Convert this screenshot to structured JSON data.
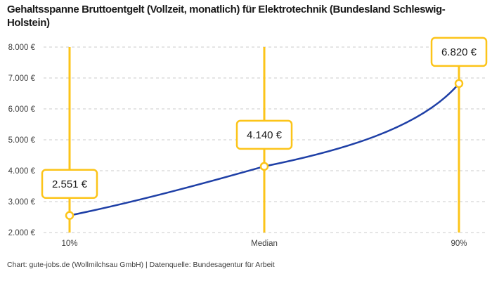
{
  "colors": {
    "accent": "#FCC419",
    "line": "#1E3FA6",
    "grid": "#CBCBCB",
    "title_text": "#1A1A1A",
    "axis_text": "#3D3D3D",
    "label_text": "#1A1A1A",
    "background": "#FFFFFF"
  },
  "chart_data": {
    "type": "line",
    "title": "Gehaltsspanne Bruttoentgelt (Vollzeit, monatlich) für Elektrotechnik (Bundesland Schleswig-Holstein)",
    "caption": "Chart: gute-jobs.de (Wollmilchsau GmbH) | Datenquelle: Bundesagentur für Arbeit",
    "categories": [
      "10%",
      "Median",
      "90%"
    ],
    "values": [
      2551,
      4140,
      6820
    ],
    "point_labels": [
      "2.551 €",
      "4.140 €",
      "6.820 €"
    ],
    "xlabel": "",
    "ylabel": "",
    "ylim": [
      2000,
      8000
    ],
    "y_ticks": [
      {
        "value": 2000,
        "label": "2.000 €"
      },
      {
        "value": 3000,
        "label": "3.000 €"
      },
      {
        "value": 4000,
        "label": "4.000 €"
      },
      {
        "value": 5000,
        "label": "5.000 €"
      },
      {
        "value": 6000,
        "label": "6.000 €"
      },
      {
        "value": 7000,
        "label": "7.000 €"
      },
      {
        "value": 8000,
        "label": "8.000 €"
      }
    ],
    "grid": "horizontal-dashed",
    "legend": "none",
    "annotations": "vertical accent rule at each percentile with value callout box"
  }
}
